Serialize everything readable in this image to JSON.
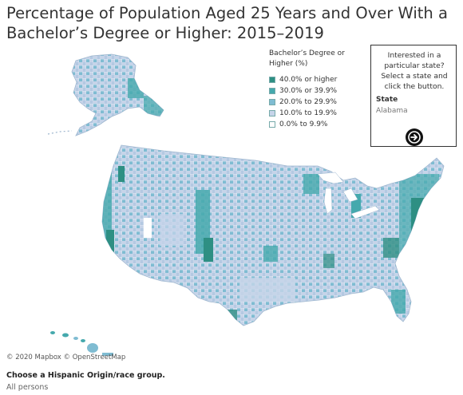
{
  "title": "Percentage of Population Aged 25 Years and Over With a Bachelor’s Degree or Higher: 2015–2019",
  "legend": {
    "title": "Bachelor’s Degree or Higher (%)",
    "items": [
      {
        "label": "40.0% or higher",
        "color": "#2e8f83"
      },
      {
        "label": "30.0% or 39.9%",
        "color": "#45a9ad"
      },
      {
        "label": "20.0% to 29.9%",
        "color": "#7fbcd2"
      },
      {
        "label": "10.0% to 19.9%",
        "color": "#c6d4e9"
      },
      {
        "label": "0.0% to 9.9%",
        "color": "#ffffff"
      }
    ]
  },
  "state_selector": {
    "prompt": "Interested in a particular state? Select a state and click the button.",
    "label": "State",
    "value": "Alabama",
    "button_icon": "arrow-right-circle-icon"
  },
  "attribution": {
    "text": "© 2020 Mapbox © OpenStreetMap"
  },
  "group_filter": {
    "label": "Choose a Hispanic Origin/race group.",
    "value": "All persons"
  }
}
